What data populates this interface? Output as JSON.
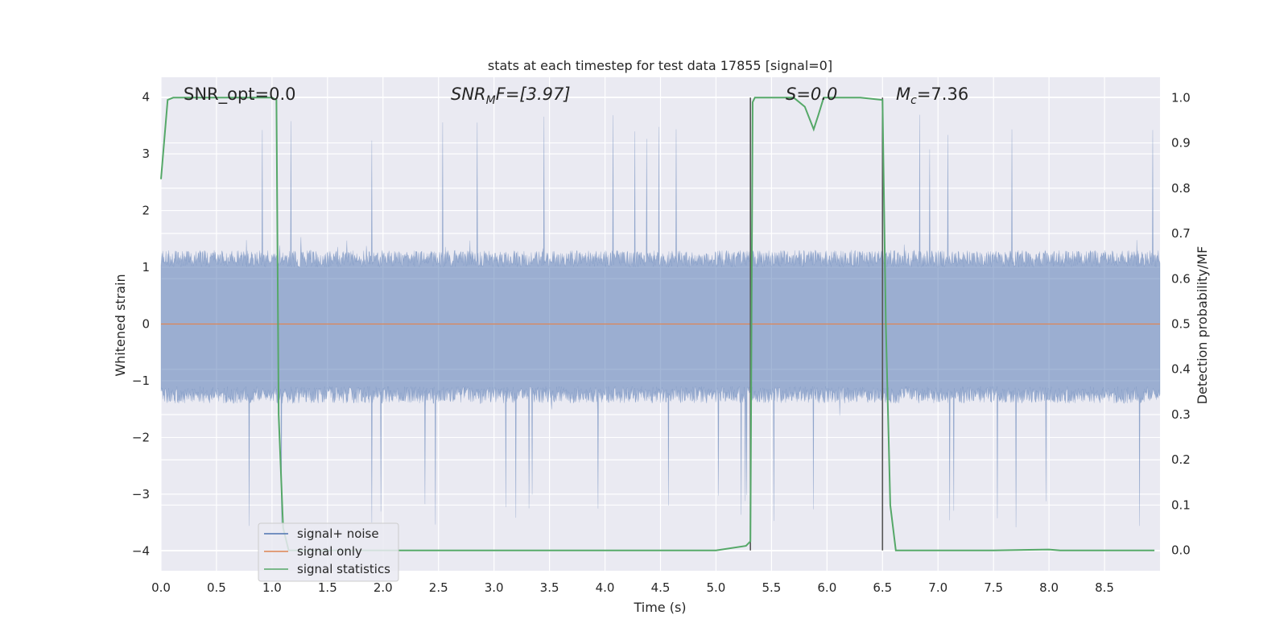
{
  "chart_data": {
    "type": "line",
    "title": "stats at each timestep for test data 17855 [signal=0]",
    "xlabel": "Time (s)",
    "ylabel_left": "Whitened strain",
    "ylabel_right": "Detection probability/MF",
    "xlim": [
      0,
      9.0
    ],
    "ylim_left": [
      -4.35,
      4.35
    ],
    "ylim_right": [
      -0.045,
      1.045
    ],
    "grid": true,
    "x_ticks": [
      "0.0",
      "0.5",
      "1.0",
      "1.5",
      "2.0",
      "2.5",
      "3.0",
      "3.5",
      "4.0",
      "4.5",
      "5.0",
      "5.5",
      "6.0",
      "6.5",
      "7.0",
      "7.5",
      "8.0",
      "8.5"
    ],
    "y_ticks_left": [
      "4",
      "3",
      "2",
      "1",
      "0",
      "−1",
      "−2",
      "−3",
      "−4"
    ],
    "y_ticks_right": [
      "1.0",
      "0.9",
      "0.8",
      "0.7",
      "0.6",
      "0.5",
      "0.4",
      "0.3",
      "0.2",
      "0.1",
      "0.0"
    ],
    "annotations": {
      "snr_opt": "SNR_opt=0.0",
      "snr_mf_base": "SNR",
      "snr_mf_sub": "M",
      "snr_mf_rest": "F=[3.97]",
      "s_value": "S=0.0",
      "mc_base": "M",
      "mc_sub": "c",
      "mc_rest": "=7.36"
    },
    "legend": {
      "position": "lower-left",
      "entries": [
        {
          "label": "signal+ noise",
          "color": "#4c72b0"
        },
        {
          "label": "signal only",
          "color": "#dd8452"
        },
        {
          "label": "signal statistics",
          "color": "#55a868"
        }
      ]
    },
    "series": [
      {
        "name": "signal+ noise",
        "axis": "left",
        "color": "#4c72b0",
        "description_type": "noise",
        "typical_envelope": [
          -1.6,
          1.6
        ],
        "max_value": 4.0,
        "min_value": -3.9
      },
      {
        "name": "signal only",
        "axis": "left",
        "color": "#dd8452",
        "x": [
          0,
          9.0
        ],
        "y": [
          0,
          0
        ]
      },
      {
        "name": "signal statistics",
        "axis": "right",
        "color": "#55a868",
        "x": [
          0.0,
          0.06,
          0.11,
          0.5,
          1.0,
          1.04,
          1.06,
          1.1,
          1.15,
          1.2,
          1.5,
          2.0,
          3.0,
          4.0,
          5.0,
          5.27,
          5.31,
          5.33,
          5.35,
          5.4,
          5.5,
          5.7,
          5.8,
          5.88,
          5.92,
          5.97,
          6.0,
          6.3,
          6.5,
          6.53,
          6.57,
          6.62,
          6.7,
          7.0,
          7.5,
          8.0,
          8.1,
          8.5,
          8.95
        ],
        "y": [
          0.82,
          0.995,
          1.0,
          1.0,
          1.0,
          0.995,
          0.3,
          0.05,
          0.0,
          0.0,
          0.0,
          0.0,
          0.0,
          0.0,
          0.0,
          0.01,
          0.02,
          0.99,
          1.0,
          1.0,
          1.0,
          1.0,
          0.98,
          0.93,
          0.96,
          1.0,
          1.0,
          1.0,
          0.995,
          0.5,
          0.1,
          0.0,
          0.0,
          0.0,
          0.0,
          0.002,
          0.0,
          0.0,
          0.0
        ]
      }
    ],
    "vertical_markers": [
      {
        "x": 5.31,
        "y_top": 1.0,
        "y_bottom": 0.0,
        "color": "#555555"
      },
      {
        "x": 6.5,
        "y_top": 1.0,
        "y_bottom": 0.0,
        "color": "#555555"
      }
    ]
  }
}
